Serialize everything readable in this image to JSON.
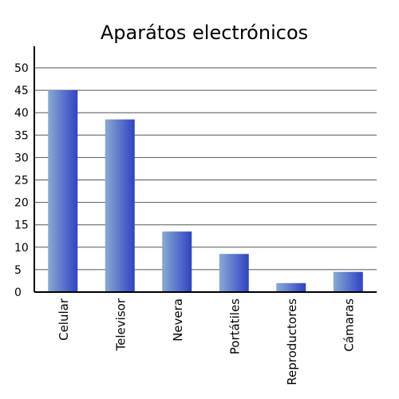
{
  "chart_data": {
    "type": "bar",
    "title": "Aparátos electrónicos",
    "categories": [
      "Celular",
      "Televisor",
      "Nevera",
      "Portátiles",
      "Reproductores",
      "Cámaras"
    ],
    "values": [
      45,
      38.5,
      13.5,
      8.5,
      2,
      4.5
    ],
    "ylim": [
      0,
      50
    ],
    "yticks": [
      0,
      5,
      10,
      15,
      20,
      25,
      30,
      35,
      40,
      45,
      50
    ],
    "grid": true,
    "bar_gradient": [
      "#88aad4",
      "#2f42c4"
    ]
  }
}
